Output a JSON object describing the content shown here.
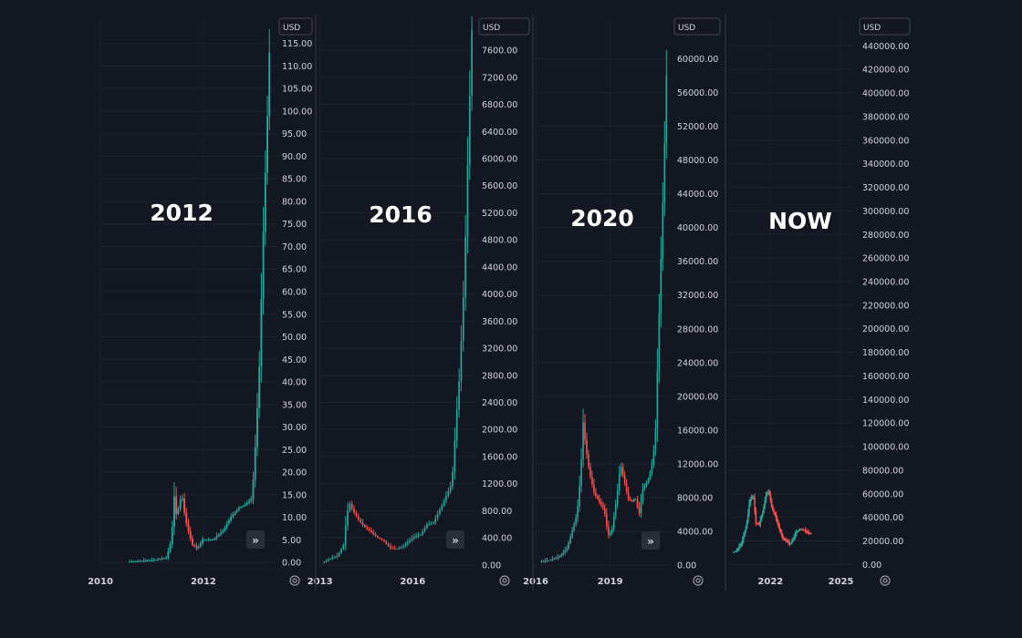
{
  "colors": {
    "up": "#26a69a",
    "down": "#ef5350",
    "background": "#131722"
  },
  "chart_data": [
    {
      "type": "candlestick",
      "title": "2012",
      "currency": "USD",
      "yticks": [
        0,
        5,
        10,
        15,
        20,
        25,
        30,
        35,
        40,
        45,
        50,
        55,
        60,
        65,
        70,
        75,
        80,
        85,
        90,
        95,
        100,
        105,
        110,
        115
      ],
      "ytick_labels": [
        "0.00",
        "5.00",
        "10.00",
        "15.00",
        "20.00",
        "25.00",
        "30.00",
        "35.00",
        "40.00",
        "45.00",
        "50.00",
        "55.00",
        "60.00",
        "65.00",
        "70.00",
        "75.00",
        "80.00",
        "85.00",
        "90.00",
        "95.00",
        "100.00",
        "105.00",
        "110.00",
        "115.00"
      ],
      "ylim": [
        -1,
        121
      ],
      "xlim": [
        2010,
        2013.4
      ],
      "xticks": [
        2010,
        2012
      ],
      "xtick_labels": [
        "2010",
        "2012"
      ],
      "x": [
        2010.55,
        2011.05,
        2011.3,
        2011.4,
        2011.45,
        2011.5,
        2011.55,
        2011.6,
        2011.65,
        2011.7,
        2011.8,
        2011.9,
        2012.0,
        2012.2,
        2012.4,
        2012.55,
        2012.7,
        2012.85,
        2012.95,
        2013.0,
        2013.1,
        2013.2,
        2013.25,
        2013.3
      ],
      "values": [
        0.1,
        0.5,
        1,
        5,
        15,
        10,
        13,
        15,
        11,
        8,
        4,
        3,
        5,
        5,
        7,
        10,
        12,
        13,
        14,
        20,
        42,
        80,
        95,
        113
      ]
    },
    {
      "type": "candlestick",
      "title": "2016",
      "currency": "USD",
      "yticks": [
        0,
        400,
        800,
        1200,
        1600,
        2000,
        2400,
        2800,
        3200,
        3600,
        4000,
        4400,
        4800,
        5200,
        5600,
        6000,
        6400,
        6800,
        7200,
        7600
      ],
      "ytick_labels": [
        "0.00",
        "400.00",
        "800.00",
        "1200.00",
        "1600.00",
        "2000.00",
        "2400.00",
        "2800.00",
        "3200.00",
        "3600.00",
        "4000.00",
        "4400.00",
        "4800.00",
        "5200.00",
        "5600.00",
        "6000.00",
        "6400.00",
        "6800.00",
        "7200.00",
        "7600.00"
      ],
      "ylim": [
        -30,
        8100
      ],
      "xlim": [
        2012.95,
        2018.0
      ],
      "xticks": [
        2013,
        2016
      ],
      "xtick_labels": [
        "2013",
        "2016"
      ],
      "x": [
        2013.1,
        2013.4,
        2013.6,
        2013.8,
        2013.9,
        2014.0,
        2014.1,
        2014.3,
        2014.5,
        2014.7,
        2014.9,
        2015.1,
        2015.3,
        2015.5,
        2015.7,
        2015.9,
        2016.1,
        2016.3,
        2016.5,
        2016.7,
        2016.9,
        2017.1,
        2017.3,
        2017.45,
        2017.55,
        2017.7,
        2017.85,
        2017.95
      ],
      "values": [
        30,
        100,
        130,
        300,
        750,
        900,
        800,
        650,
        550,
        480,
        400,
        350,
        250,
        240,
        260,
        350,
        420,
        450,
        600,
        620,
        800,
        1000,
        1200,
        2200,
        2800,
        4200,
        6500,
        7900
      ]
    },
    {
      "type": "candlestick",
      "title": "2020",
      "currency": "USD",
      "yticks": [
        0,
        4000,
        8000,
        12000,
        16000,
        20000,
        24000,
        28000,
        32000,
        36000,
        40000,
        44000,
        48000,
        52000,
        56000,
        60000
      ],
      "ytick_labels": [
        "0.00",
        "4000.00",
        "8000.00",
        "12000.00",
        "16000.00",
        "20000.00",
        "24000.00",
        "28000.00",
        "32000.00",
        "36000.00",
        "40000.00",
        "44000.00",
        "48000.00",
        "52000.00",
        "56000.00",
        "60000.00"
      ],
      "ylim": [
        -200,
        65000
      ],
      "xlim": [
        2016,
        2021.4
      ],
      "xticks": [
        2016,
        2019
      ],
      "xtick_labels": [
        "2016",
        "2019"
      ],
      "x": [
        2016.2,
        2016.6,
        2017.0,
        2017.3,
        2017.5,
        2017.7,
        2017.85,
        2017.95,
        2018.05,
        2018.2,
        2018.4,
        2018.6,
        2018.8,
        2018.95,
        2019.1,
        2019.3,
        2019.45,
        2019.6,
        2019.75,
        2019.9,
        2020.05,
        2020.2,
        2020.35,
        2020.55,
        2020.7,
        2020.85,
        2021.0,
        2021.1,
        2021.2,
        2021.3
      ],
      "values": [
        400,
        600,
        1000,
        2000,
        4000,
        6000,
        11000,
        17000,
        14000,
        11000,
        8500,
        7500,
        6500,
        3500,
        4000,
        8000,
        12000,
        10000,
        8000,
        7500,
        8000,
        6000,
        9000,
        10000,
        11500,
        15000,
        29000,
        38000,
        47000,
        58000
      ]
    },
    {
      "type": "candlestick",
      "title": "NOW",
      "currency": "USD",
      "yticks": [
        0,
        20000,
        40000,
        60000,
        80000,
        100000,
        120000,
        140000,
        160000,
        180000,
        200000,
        220000,
        240000,
        260000,
        280000,
        300000,
        320000,
        340000,
        360000,
        380000,
        400000,
        420000,
        440000
      ],
      "ytick_labels": [
        "0.00",
        "20000.00",
        "40000.00",
        "60000.00",
        "80000.00",
        "100000.00",
        "120000.00",
        "140000.00",
        "160000.00",
        "180000.00",
        "200000.00",
        "220000.00",
        "240000.00",
        "260000.00",
        "280000.00",
        "300000.00",
        "320000.00",
        "340000.00",
        "360000.00",
        "380000.00",
        "400000.00",
        "420000.00",
        "440000.00"
      ],
      "ylim": [
        -2000,
        465000
      ],
      "xlim": [
        2020.2,
        2025.6
      ],
      "xticks": [
        2022,
        2025
      ],
      "xtick_labels": [
        "2022",
        "2025"
      ],
      "x": [
        2020.4,
        2020.6,
        2020.8,
        2021.0,
        2021.15,
        2021.3,
        2021.4,
        2021.55,
        2021.7,
        2021.85,
        2021.95,
        2022.1,
        2022.25,
        2022.4,
        2022.55,
        2022.7,
        2022.85,
        2023.0,
        2023.15,
        2023.3,
        2023.45,
        2023.6,
        2023.75
      ],
      "values": [
        10000,
        12000,
        18000,
        33000,
        55000,
        58000,
        35000,
        34000,
        45000,
        60000,
        62000,
        47000,
        40000,
        30000,
        22000,
        20000,
        17000,
        22000,
        28000,
        30000,
        29000,
        27000,
        26000
      ]
    }
  ]
}
